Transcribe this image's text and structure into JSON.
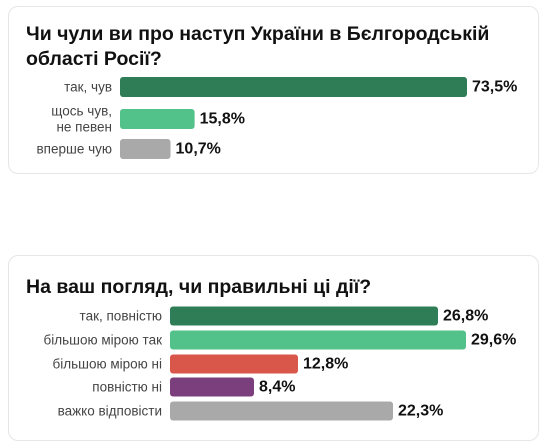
{
  "chart_data": [
    {
      "type": "bar",
      "orientation": "horizontal",
      "title": "Чи чули ви про наступ України в Бєлгородській області Росії?",
      "categories": [
        [
          "так, чув"
        ],
        [
          "щось чув,",
          "не певен"
        ],
        [
          "вперше чую"
        ]
      ],
      "values": [
        73.5,
        15.8,
        10.7
      ],
      "value_labels": [
        "73,5%",
        "15,8%",
        "10,7%"
      ],
      "colors": [
        "#2e7d57",
        "#52c28a",
        "#a9a9a9"
      ],
      "xlim": [
        0,
        73.5
      ],
      "grid": false,
      "legend": "none"
    },
    {
      "type": "bar",
      "orientation": "horizontal",
      "title": "На ваш погляд, чи правильні ці дії?",
      "categories": [
        [
          "так, повністю"
        ],
        [
          "більшою мірою так"
        ],
        [
          "більшою мірою ні"
        ],
        [
          "повністю ні"
        ],
        [
          "важко відповісти"
        ]
      ],
      "values": [
        26.8,
        29.6,
        12.8,
        8.4,
        22.3
      ],
      "value_labels": [
        "26,8%",
        "29,6%",
        "12,8%",
        "8,4%",
        "22,3%"
      ],
      "colors": [
        "#2e7d57",
        "#52c28a",
        "#d9574a",
        "#7b3f7e",
        "#a9a9a9"
      ],
      "xlim": [
        0,
        29.6
      ],
      "grid": false,
      "legend": "none"
    }
  ]
}
